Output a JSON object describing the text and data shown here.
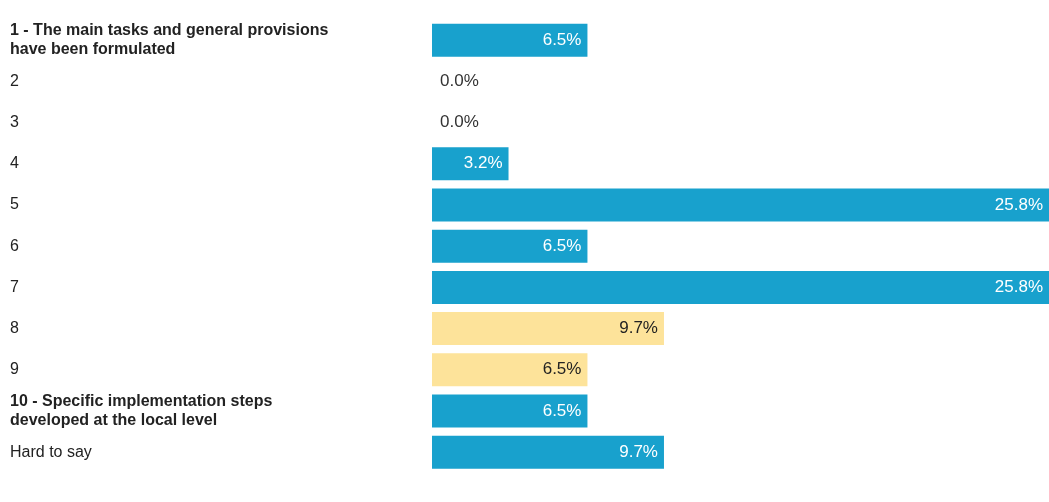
{
  "chart_data": {
    "type": "bar",
    "orientation": "horizontal",
    "categories": [
      "1 - The main tasks and general provisions have been formulated",
      "2",
      "3",
      "4",
      "5",
      "6",
      "7",
      "8",
      "9",
      "10 - Specific implementation steps developed at the local level",
      "Hard to say"
    ],
    "values": [
      6.5,
      0,
      0,
      3.2,
      25.8,
      6.5,
      25.8,
      9.7,
      6.5,
      6.5,
      9.7
    ],
    "colors": [
      "#18a1cd",
      "#18a1cd",
      "#18a1cd",
      "#18a1cd",
      "#18a1cd",
      "#18a1cd",
      "#18a1cd",
      "#fde39a",
      "#fde39a",
      "#18a1cd",
      "#18a1cd"
    ],
    "value_labels": [
      "6.5%",
      "0.0%",
      "0.0%",
      "3.2%",
      "25.8%",
      "6.5%",
      "25.8%",
      "9.7%",
      "6.5%",
      "6.5%",
      "9.7%"
    ],
    "xlim": [
      0,
      25.8
    ],
    "legend": false
  }
}
